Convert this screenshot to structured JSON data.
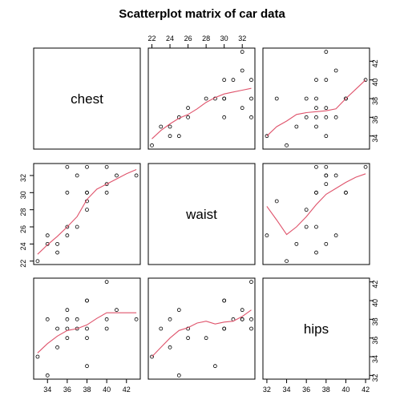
{
  "chart_data": {
    "type": "scatter",
    "title": "Scatterplot matrix of car data",
    "variables": [
      "chest",
      "waist",
      "hips"
    ],
    "axis_ticks": {
      "chest": [
        34,
        36,
        38,
        40,
        42
      ],
      "waist": [
        22,
        24,
        26,
        28,
        30,
        32
      ],
      "hips": [
        32,
        34,
        36,
        38,
        40,
        42
      ]
    },
    "axis_ranges": {
      "chest": [
        32.6,
        43.4
      ],
      "waist": [
        21.6,
        33.4
      ],
      "hips": [
        31.6,
        42.4
      ]
    },
    "points": {
      "chest": [
        33,
        34,
        34,
        35,
        35,
        36,
        36,
        36,
        36,
        37,
        37,
        38,
        38,
        38,
        38,
        38,
        40,
        40,
        40,
        41,
        43
      ],
      "waist": [
        22,
        24,
        25,
        23,
        24,
        25,
        26,
        30,
        33,
        32,
        26,
        28,
        29,
        30,
        30,
        33,
        30,
        31,
        33,
        32,
        32
      ],
      "hips": [
        34,
        38,
        32,
        37,
        35,
        39,
        36,
        37,
        38,
        38,
        37,
        36,
        33,
        40,
        40,
        37,
        37,
        38,
        42,
        39,
        38
      ]
    },
    "smoothers": {
      "waist_vs_chest": {
        "x": [
          33,
          34,
          35,
          36,
          37,
          38,
          39,
          40,
          41,
          42,
          43
        ],
        "y": [
          22.8,
          23.9,
          24.9,
          26.0,
          27.2,
          29.2,
          30.4,
          31.0,
          31.6,
          32.2,
          32.7
        ]
      },
      "hips_vs_chest": {
        "x": [
          33,
          34,
          35,
          36,
          37,
          38,
          39,
          40,
          41,
          42,
          43
        ],
        "y": [
          34.4,
          35.4,
          36.2,
          36.8,
          37.0,
          37.4,
          38.1,
          38.7,
          38.7,
          38.7,
          38.7
        ]
      },
      "chest_vs_waist": {
        "x": [
          22,
          23,
          24,
          25,
          26,
          27,
          28,
          29,
          30,
          31,
          32,
          33
        ],
        "y": [
          33.7,
          34.6,
          35.3,
          35.9,
          36.3,
          36.9,
          37.6,
          38.1,
          38.5,
          38.7,
          38.9,
          39.1
        ]
      },
      "hips_vs_waist": {
        "x": [
          22,
          23,
          24,
          25,
          26,
          27,
          28,
          29,
          30,
          31,
          32,
          33
        ],
        "y": [
          34.0,
          35.0,
          36.0,
          36.8,
          37.1,
          37.6,
          37.8,
          37.5,
          37.7,
          37.8,
          38.3,
          39.0
        ]
      },
      "chest_vs_hips": {
        "x": [
          32,
          33,
          34,
          35,
          36,
          37,
          38,
          39,
          40,
          41,
          42
        ],
        "y": [
          34.0,
          35.0,
          35.6,
          36.3,
          36.5,
          36.6,
          36.7,
          36.9,
          38.0,
          39.0,
          40.0
        ]
      },
      "waist_vs_hips": {
        "x": [
          32,
          33,
          34,
          35,
          36,
          37,
          38,
          39,
          40,
          41,
          42
        ],
        "y": [
          28.4,
          26.8,
          25.1,
          26.0,
          27.2,
          28.6,
          29.8,
          30.5,
          31.2,
          31.8,
          32.2
        ]
      }
    },
    "colors": {
      "points": "#000000",
      "smoother": "#DF536B"
    }
  }
}
